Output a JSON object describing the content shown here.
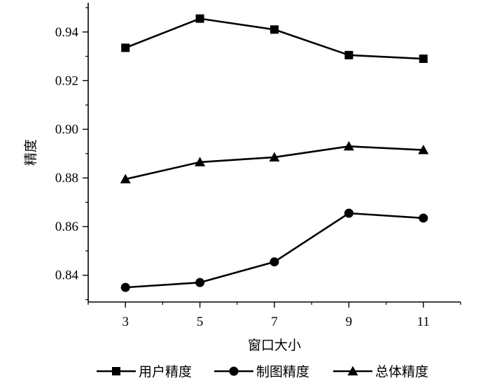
{
  "chart_data": {
    "type": "line",
    "title": "",
    "xlabel": "窗口大小",
    "ylabel": "精度",
    "x": [
      3,
      5,
      7,
      9,
      11
    ],
    "x_ticks": [
      "3",
      "5",
      "7",
      "9",
      "11"
    ],
    "y_ticks": [
      "0.84",
      "0.86",
      "0.88",
      "0.90",
      "0.92",
      "0.94"
    ],
    "y_tick_values": [
      0.84,
      0.86,
      0.88,
      0.9,
      0.92,
      0.94
    ],
    "xlim": [
      2,
      12
    ],
    "ylim": [
      0.829,
      0.952
    ],
    "grid": false,
    "legend_position": "bottom",
    "series": [
      {
        "name": "用户精度",
        "marker": "square",
        "values": [
          0.9335,
          0.9455,
          0.941,
          0.9305,
          0.929
        ]
      },
      {
        "name": "制图精度",
        "marker": "circle",
        "values": [
          0.835,
          0.837,
          0.8455,
          0.8655,
          0.8635
        ]
      },
      {
        "name": "总体精度",
        "marker": "triangle",
        "values": [
          0.8795,
          0.8865,
          0.8885,
          0.893,
          0.8915
        ]
      }
    ]
  }
}
